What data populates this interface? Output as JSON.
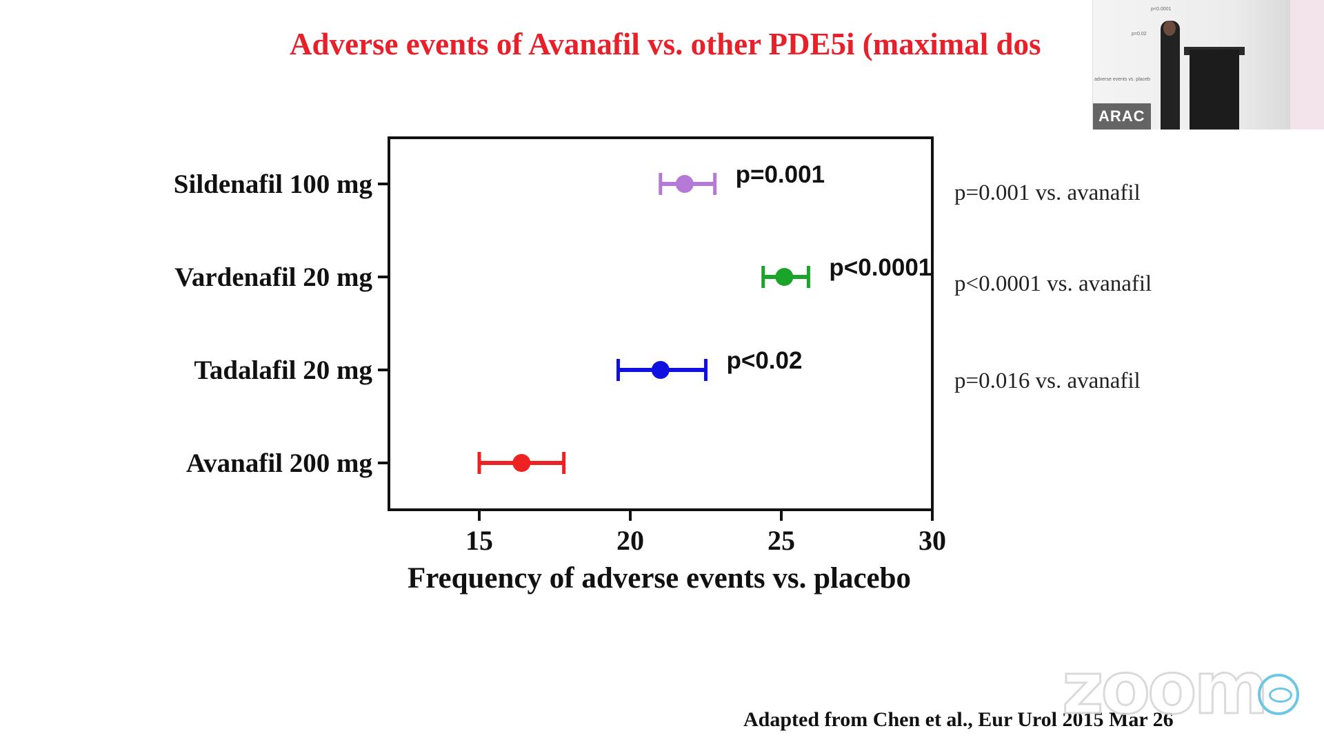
{
  "slide": {
    "title": "Adverse events of Avanafil vs. other PDE5i (maximal dos",
    "source": "Adapted from Chen et al., Eur Urol 2015 Mar 26"
  },
  "video": {
    "participant_name": "ARAC",
    "mini_text": [
      "p<0.0001",
      "p=0.02",
      "adverse events vs. placeb"
    ]
  },
  "chart_data": {
    "type": "forest",
    "title": "",
    "xlabel": "Frequency of adverse events vs. placebo",
    "ylabel": "",
    "xlim": [
      12,
      30
    ],
    "xticks": [
      15,
      20,
      25,
      30
    ],
    "grid": false,
    "categories": [
      "Sildenafil 100 mg",
      "Vardenafil 20 mg",
      "Tadalafil 20 mg",
      "Avanafil 200 mg"
    ],
    "series": [
      {
        "category": "Sildenafil 100 mg",
        "value": 21.8,
        "low": 21.0,
        "high": 22.8,
        "color": "#b57ad6",
        "pvalue": "p=0.001",
        "note": "p=0.001 vs. avanafil"
      },
      {
        "category": "Vardenafil 20 mg",
        "value": 25.1,
        "low": 24.4,
        "high": 25.9,
        "color": "#1aa52a",
        "pvalue": "p<0.0001",
        "note": "p<0.0001 vs. avanafil"
      },
      {
        "category": "Tadalafil 20 mg",
        "value": 21.0,
        "low": 19.6,
        "high": 22.5,
        "color": "#1010e0",
        "pvalue": "p<0.02",
        "note": "p=0.016 vs. avanafil"
      },
      {
        "category": "Avanafil 200 mg",
        "value": 16.4,
        "low": 15.0,
        "high": 17.8,
        "color": "#ee2222",
        "pvalue": "",
        "note": ""
      }
    ]
  },
  "branding": {
    "watermark": "zoom"
  }
}
